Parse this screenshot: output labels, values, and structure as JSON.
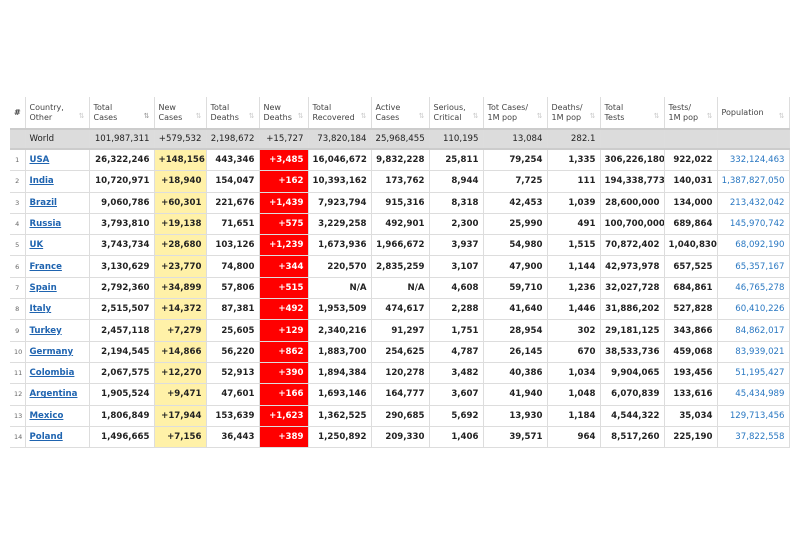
{
  "headers": [
    "#",
    "Country,\nOther",
    "Total\nCases",
    "New\nCases",
    "Total\nDeaths",
    "New\nDeaths",
    "Total\nRecovered",
    "Active\nCases",
    "Serious,\nCritical",
    "Tot Cases/\n1M pop",
    "Deaths/\n1M pop",
    "Total\nTests",
    "Tests/\n1M pop",
    "Population"
  ],
  "sort_icon": "⇅",
  "world": [
    "",
    "World",
    "101,987,311",
    "+579,532",
    "2,198,672",
    "+15,727",
    "73,820,184",
    "25,968,455",
    "110,195",
    "13,084",
    "282.1",
    "",
    "",
    ""
  ],
  "rows": [
    [
      "1",
      "USA",
      "26,322,246",
      "+148,156",
      "443,346",
      "+3,485",
      "16,046,672",
      "9,832,228",
      "25,811",
      "79,254",
      "1,335",
      "306,226,180",
      "922,022",
      "332,124,463"
    ],
    [
      "2",
      "India",
      "10,720,971",
      "+18,940",
      "154,047",
      "+162",
      "10,393,162",
      "173,762",
      "8,944",
      "7,725",
      "111",
      "194,338,773",
      "140,031",
      "1,387,827,050"
    ],
    [
      "3",
      "Brazil",
      "9,060,786",
      "+60,301",
      "221,676",
      "+1,439",
      "7,923,794",
      "915,316",
      "8,318",
      "42,453",
      "1,039",
      "28,600,000",
      "134,000",
      "213,432,042"
    ],
    [
      "4",
      "Russia",
      "3,793,810",
      "+19,138",
      "71,651",
      "+575",
      "3,229,258",
      "492,901",
      "2,300",
      "25,990",
      "491",
      "100,700,000",
      "689,864",
      "145,970,742"
    ],
    [
      "5",
      "UK",
      "3,743,734",
      "+28,680",
      "103,126",
      "+1,239",
      "1,673,936",
      "1,966,672",
      "3,937",
      "54,980",
      "1,515",
      "70,872,402",
      "1,040,830",
      "68,092,190"
    ],
    [
      "6",
      "France",
      "3,130,629",
      "+23,770",
      "74,800",
      "+344",
      "220,570",
      "2,835,259",
      "3,107",
      "47,900",
      "1,144",
      "42,973,978",
      "657,525",
      "65,357,167"
    ],
    [
      "7",
      "Spain",
      "2,792,360",
      "+34,899",
      "57,806",
      "+515",
      "N/A",
      "N/A",
      "4,608",
      "59,710",
      "1,236",
      "32,027,728",
      "684,861",
      "46,765,278"
    ],
    [
      "8",
      "Italy",
      "2,515,507",
      "+14,372",
      "87,381",
      "+492",
      "1,953,509",
      "474,617",
      "2,288",
      "41,640",
      "1,446",
      "31,886,202",
      "527,828",
      "60,410,226"
    ],
    [
      "9",
      "Turkey",
      "2,457,118",
      "+7,279",
      "25,605",
      "+129",
      "2,340,216",
      "91,297",
      "1,751",
      "28,954",
      "302",
      "29,181,125",
      "343,866",
      "84,862,017"
    ],
    [
      "10",
      "Germany",
      "2,194,545",
      "+14,866",
      "56,220",
      "+862",
      "1,883,700",
      "254,625",
      "4,787",
      "26,145",
      "670",
      "38,533,736",
      "459,068",
      "83,939,021"
    ],
    [
      "11",
      "Colombia",
      "2,067,575",
      "+12,270",
      "52,913",
      "+390",
      "1,894,384",
      "120,278",
      "3,482",
      "40,386",
      "1,034",
      "9,904,065",
      "193,456",
      "51,195,427"
    ],
    [
      "12",
      "Argentina",
      "1,905,524",
      "+9,471",
      "47,601",
      "+166",
      "1,693,146",
      "164,777",
      "3,607",
      "41,940",
      "1,048",
      "6,070,839",
      "133,616",
      "45,434,989"
    ],
    [
      "13",
      "Mexico",
      "1,806,849",
      "+17,944",
      "153,639",
      "+1,623",
      "1,362,525",
      "290,685",
      "5,692",
      "13,930",
      "1,184",
      "4,544,322",
      "35,034",
      "129,713,456"
    ],
    [
      "14",
      "Poland",
      "1,496,665",
      "+7,156",
      "36,443",
      "+389",
      "1,250,892",
      "209,330",
      "1,406",
      "39,571",
      "964",
      "8,517,260",
      "225,190",
      "37,822,558"
    ]
  ],
  "colors": {
    "new_cases_bg": "#fff1a8",
    "new_deaths_bg": "#ff0000",
    "link": "#1f64b0",
    "population": "#2a78c2",
    "world_bg": "#dcdcdc"
  }
}
